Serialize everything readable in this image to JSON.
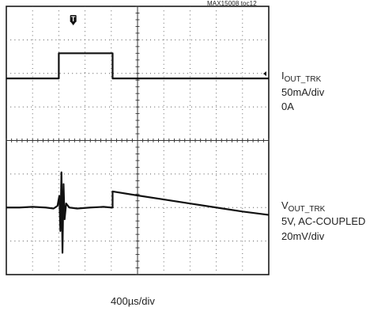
{
  "figure_tag": "MAX15008 toc12",
  "chart_data": {
    "type": "line",
    "title": "",
    "xlabel": "400µs/div",
    "x_divisions": 10,
    "y_divisions": 8,
    "grid": true,
    "trigger_marker": "T",
    "channels": [
      {
        "name_main": "I",
        "name_sub": "OUT_TRK",
        "scale": "50mA/div",
        "ground_label": "0A",
        "ground_div": 2.15,
        "t_div": [
          0,
          2.0,
          2.0,
          4.05,
          4.05,
          10
        ],
        "v_div": [
          0,
          0,
          0.75,
          0.75,
          0,
          0
        ]
      },
      {
        "name_main": "V",
        "name_sub": "OUT_TRK",
        "coupling": "5V, AC-COUPLED",
        "scale": "20mV/div",
        "ref_div": 6.0,
        "t_div": [
          0,
          0.5,
          1.0,
          1.5,
          1.8,
          1.95,
          2.02,
          2.06,
          2.1,
          2.14,
          2.18,
          2.22,
          2.28,
          2.4,
          2.7,
          3.2,
          3.7,
          4.0,
          4.05,
          4.05,
          5.0,
          6.0,
          7.0,
          8.0,
          9.0,
          10
        ],
        "v_div": [
          0,
          0,
          0.02,
          0,
          -0.03,
          0.05,
          0.35,
          -0.7,
          1.05,
          -1.35,
          0.7,
          -0.35,
          0.12,
          0,
          -0.03,
          0,
          0.02,
          0,
          0,
          0.48,
          0.36,
          0.24,
          0.12,
          0.0,
          -0.12,
          -0.22
        ]
      }
    ]
  }
}
